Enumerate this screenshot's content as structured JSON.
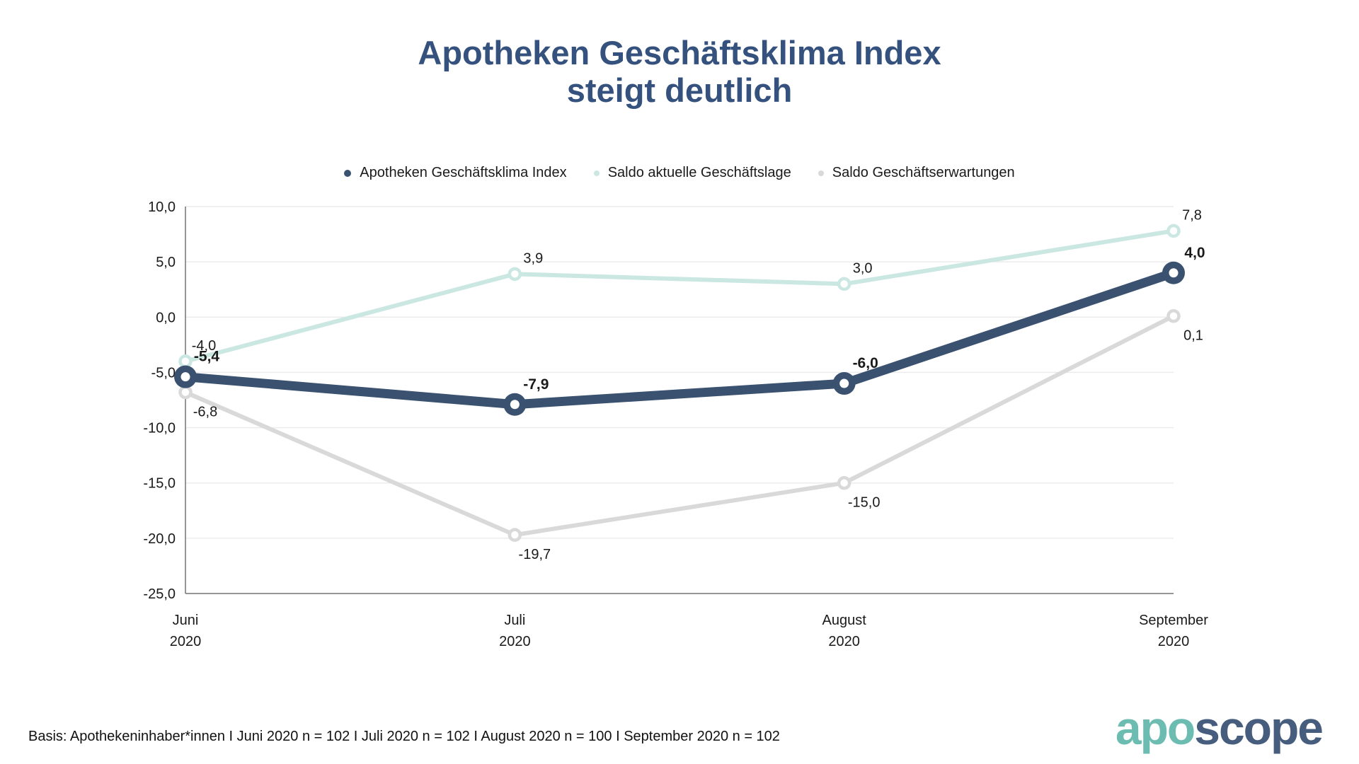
{
  "title": {
    "line1": "Apotheken Geschäftsklima Index",
    "line2": "steigt deutlich"
  },
  "chart_data": {
    "type": "line",
    "categories": [
      {
        "month": "Juni",
        "year": "2020"
      },
      {
        "month": "Juli",
        "year": "2020"
      },
      {
        "month": "August",
        "year": "2020"
      },
      {
        "month": "September",
        "year": "2020"
      }
    ],
    "series": [
      {
        "name": "Apotheken Geschäftsklima Index",
        "color": "#3A5170",
        "values": [
          -5.4,
          -7.9,
          -6.0,
          4.0
        ],
        "labels": [
          "-5,4",
          "-7,9",
          "-6,0",
          "4,0"
        ],
        "bold_labels": true,
        "marker": "big-ring",
        "line_width": 13
      },
      {
        "name": "Saldo aktuelle Geschäftslage",
        "color": "#CBE7E2",
        "values": [
          -4.0,
          3.9,
          3.0,
          7.8
        ],
        "labels": [
          "-4,0",
          "3,9",
          "3,0",
          "7,8"
        ],
        "bold_labels": false,
        "marker": "small-ring",
        "line_width": 6
      },
      {
        "name": "Saldo Geschäftserwartungen",
        "color": "#D9D9D9",
        "values": [
          -6.8,
          -19.7,
          -15.0,
          0.1
        ],
        "labels": [
          "-6,8",
          "-19,7",
          "-15,0",
          "0,1"
        ],
        "bold_labels": false,
        "marker": "small-ring",
        "line_width": 6
      }
    ],
    "ylim": [
      -25,
      10
    ],
    "ytick_step": 5,
    "ytick_labels": [
      "10,0",
      "5,0",
      "0,0",
      "-5,0",
      "-10,0",
      "-15,0",
      "-20,0",
      "-25,0"
    ],
    "grid": true,
    "legend_position": "top-center"
  },
  "footer": {
    "basis": "Basis: Apothekeninhaber*innen I Juni 2020 n = 102 I Juli 2020 n = 102 I August 2020 n = 100 I September 2020 n = 102"
  },
  "logo": {
    "part1": "apo",
    "part2": "scope",
    "color1": "#6CBCB2",
    "color2": "#475D7D"
  },
  "colors": {
    "title": "#35517E",
    "axis": "#737373",
    "gridline": "#ECECEC",
    "text": "#1a1a1a"
  }
}
